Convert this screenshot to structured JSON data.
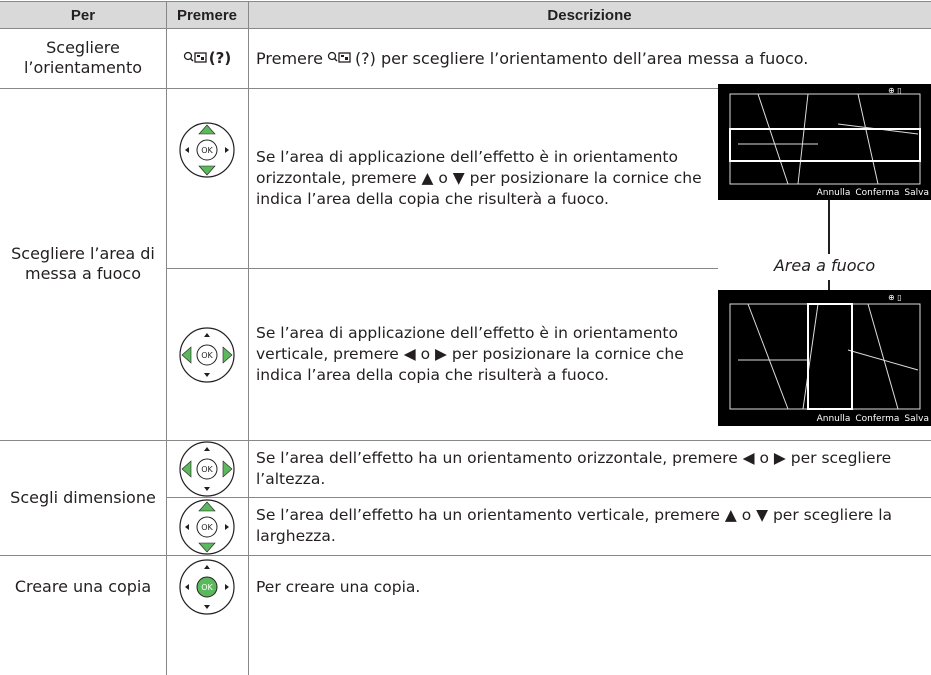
{
  "header": {
    "per": "Per",
    "premere": "Premere",
    "descrizione": "Descrizione"
  },
  "rows": [
    {
      "per": "Scegliere l’orientamento",
      "premere": "(?)",
      "descrizione": {
        "before": "Premere",
        "after": "(?) per scegliere l’orientamento dell’area messa a fuoco."
      }
    },
    {
      "per": "Scegliere l’area di messa a fuoco",
      "steps": [
        {
          "descrizione": "Se l’area di applicazione dell’effetto è in orientamento orizzontale, premere ▲ o ▼ per posizionare la cornice che indica l’area della copia che risulterà a fuoco."
        },
        {
          "descrizione": "Se l’area di applicazione dell’effetto è in orientamento verticale, premere ◀ o ▶ per posizionare la cornice che indica l’area della copia che risulterà a fuoco."
        }
      ]
    },
    {
      "per": "Scegli dimensione",
      "steps": [
        {
          "descrizione": "Se l’area dell’effetto ha un orientamento orizzontale, premere ◀ o ▶ per scegliere l’altezza."
        },
        {
          "descrizione": "Se l’area dell’effetto ha un orientamento verticale, premere ▲ o ▼ per scegliere la larghezza."
        }
      ]
    },
    {
      "per": "Creare una copia",
      "descrizione": "Per creare una copia."
    }
  ],
  "screens": [
    {
      "buttons": [
        "Annulla",
        "Conferma",
        "Salva"
      ]
    },
    {
      "buttons": [
        "Annulla",
        "Conferma",
        "Salva"
      ]
    }
  ],
  "caption": "Area a fuoco"
}
